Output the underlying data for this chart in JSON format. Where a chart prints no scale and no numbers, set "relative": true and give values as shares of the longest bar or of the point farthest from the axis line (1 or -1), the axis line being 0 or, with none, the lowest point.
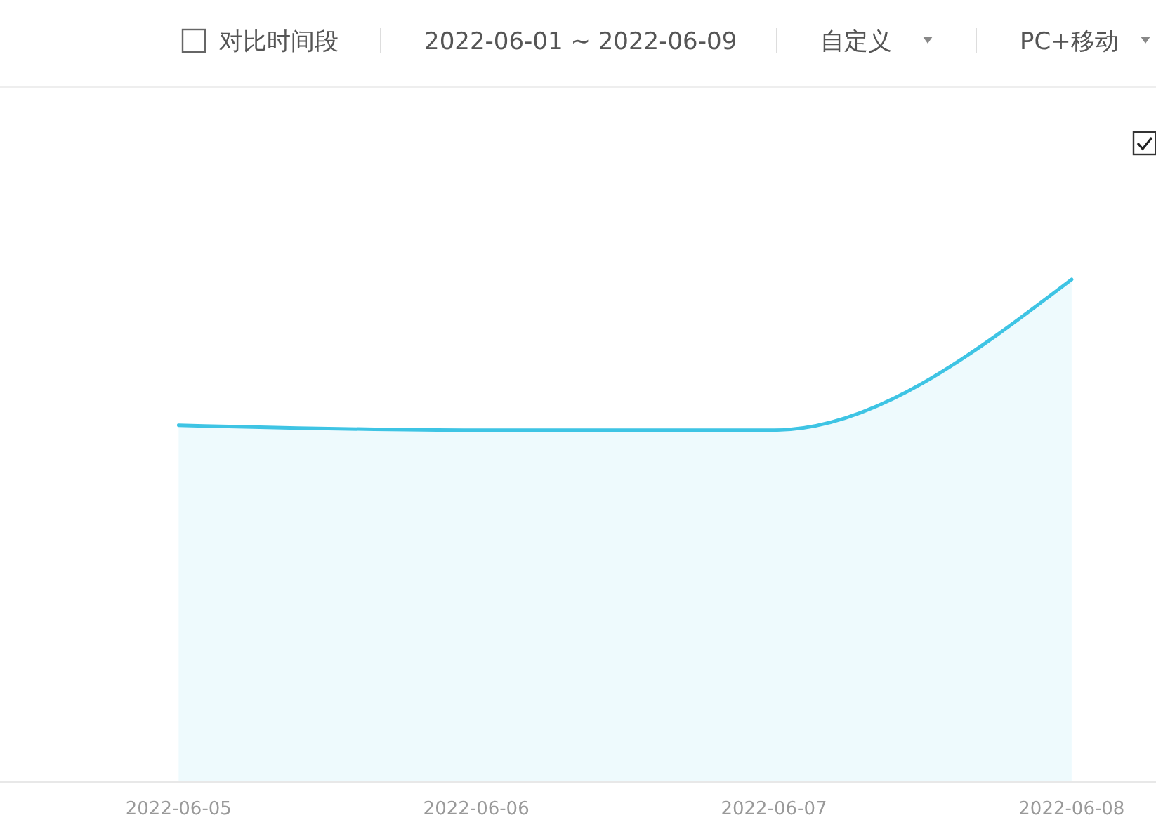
{
  "chart_data": {
    "type": "area",
    "relative": true,
    "x": [
      "2022-06-05",
      "2022-06-06",
      "2022-06-07",
      "2022-06-08"
    ],
    "xlim": [
      "2022-06-04T09:36",
      "2022-06-08T06:48"
    ],
    "xticks": [
      {
        "value": "2022-06-05",
        "label": "2022-06-05"
      },
      {
        "value": "2022-06-06",
        "label": "2022-06-06"
      },
      {
        "value": "2022-06-07",
        "label": "2022-06-07"
      },
      {
        "value": "2022-06-08",
        "label": "2022-06-08"
      }
    ],
    "series": [
      {
        "color": "#3ec4e4",
        "values": [
          0.71,
          0.7,
          0.7,
          1
        ]
      }
    ],
    "annotations": [
      "对比时间段",
      "2022-06-01 ~ 2022-06-09",
      "自定义",
      "PC+移动"
    ]
  }
}
